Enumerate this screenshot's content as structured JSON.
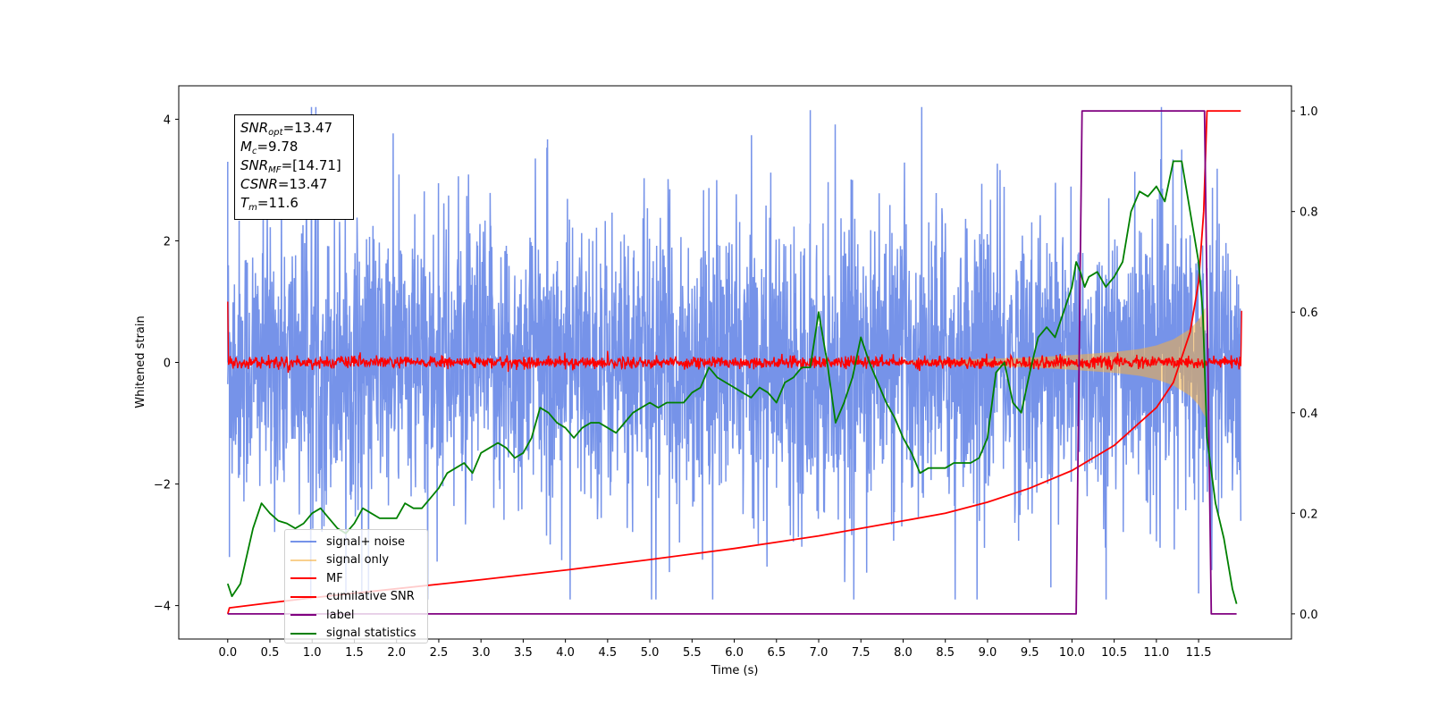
{
  "colors": {
    "signal_noise": "#4169e1",
    "signal_only": "#f5b042",
    "mf": "#ff0000",
    "cum_snr": "#ff0000",
    "label": "#800080",
    "stats": "#008000"
  },
  "info": {
    "snr_opt_sym": "SNR",
    "snr_opt_sub": "opt",
    "snr_opt_val": "=13.47",
    "mc_sym": "M",
    "mc_sub": "c",
    "mc_val": "=9.78",
    "snr_mf_sym": "SNR",
    "snr_mf_sub": "MF",
    "snr_mf_val": "=[14.71]",
    "csnr_sym": "CSNR",
    "csnr_val": "=13.47",
    "tm_sym": "T",
    "tm_sub": "m",
    "tm_val": "=11.6"
  },
  "legend": [
    {
      "label": "signal+ noise",
      "color": "#4169e1"
    },
    {
      "label": "signal only",
      "color": "#f5b042"
    },
    {
      "label": "MF",
      "color": "#ff0000"
    },
    {
      "label": "cumilative SNR",
      "color": "#ff0000"
    },
    {
      "label": "label",
      "color": "#800080"
    },
    {
      "label": "signal statistics",
      "color": "#008000"
    }
  ],
  "chart_data": {
    "type": "line",
    "xlabel": "Time (s)",
    "ylabel": "Whitened strain",
    "xlim": [
      -0.58,
      12.6
    ],
    "ylim_left": [
      -4.55,
      4.55
    ],
    "ylim_right": [
      -0.05,
      1.05
    ],
    "x_ticks": [
      "0.0",
      "0.5",
      "1.0",
      "1.5",
      "2.0",
      "2.5",
      "3.0",
      "3.5",
      "4.0",
      "4.5",
      "5.0",
      "5.5",
      "6.0",
      "6.5",
      "7.0",
      "7.5",
      "8.0",
      "8.5",
      "9.0",
      "9.5",
      "10.0",
      "10.5",
      "11.0",
      "11.5"
    ],
    "y_left_ticks": [
      "4",
      "2",
      "0",
      "−2",
      "−4"
    ],
    "y_left_tick_values": [
      4,
      2,
      0,
      -2,
      -4
    ],
    "y_right_ticks": [
      "1.0",
      "0.8",
      "0.6",
      "0.4",
      "0.2",
      "0.0"
    ],
    "y_right_tick_values": [
      1.0,
      0.8,
      0.6,
      0.4,
      0.2,
      0.0
    ],
    "series": [
      {
        "name": "signal+ noise",
        "axis": "left",
        "note_shape": "dense noise band",
        "x_range": [
          0.0,
          12.0
        ],
        "band_p05": [
          -2.3,
          2.3
        ],
        "band_extremes": [
          -3.9,
          4.2
        ],
        "values_sample": [
          [
            0.0,
            3.3
          ],
          [
            0.02,
            -3.2
          ],
          [
            6.9,
            4.15
          ],
          [
            7.4,
            3.0
          ],
          [
            11.3,
            3.5
          ],
          [
            11.5,
            -3.8
          ],
          [
            9.75,
            -3.7
          ]
        ]
      },
      {
        "name": "signal only",
        "axis": "left",
        "envelope": [
          [
            8.0,
            0.02
          ],
          [
            8.5,
            0.04
          ],
          [
            9.0,
            0.06
          ],
          [
            9.5,
            0.08
          ],
          [
            10.0,
            0.12
          ],
          [
            10.5,
            0.17
          ],
          [
            10.8,
            0.22
          ],
          [
            11.0,
            0.28
          ],
          [
            11.2,
            0.38
          ],
          [
            11.4,
            0.55
          ],
          [
            11.5,
            0.7
          ],
          [
            11.58,
            0.9
          ]
        ]
      },
      {
        "name": "MF",
        "axis": "left",
        "note_shape": "noisy near zero, spike at start",
        "values": [
          [
            0.0,
            1.0
          ],
          [
            0.01,
            0.1
          ],
          [
            12.0,
            -0.05
          ],
          [
            12.01,
            0.85
          ]
        ],
        "noise_amplitude": 0.1
      },
      {
        "name": "cumilative SNR",
        "axis": "right",
        "values": [
          [
            0.0,
            0.0
          ],
          [
            0.02,
            0.012
          ],
          [
            0.5,
            0.022
          ],
          [
            1.0,
            0.032
          ],
          [
            2.0,
            0.05
          ],
          [
            3.0,
            0.068
          ],
          [
            4.0,
            0.087
          ],
          [
            5.0,
            0.108
          ],
          [
            6.0,
            0.13
          ],
          [
            7.0,
            0.155
          ],
          [
            8.0,
            0.185
          ],
          [
            8.5,
            0.2
          ],
          [
            9.0,
            0.222
          ],
          [
            9.5,
            0.25
          ],
          [
            10.0,
            0.285
          ],
          [
            10.5,
            0.335
          ],
          [
            11.0,
            0.41
          ],
          [
            11.2,
            0.46
          ],
          [
            11.4,
            0.56
          ],
          [
            11.5,
            0.66
          ],
          [
            11.56,
            0.8
          ],
          [
            11.6,
            1.0
          ],
          [
            12.0,
            1.0
          ]
        ]
      },
      {
        "name": "label",
        "axis": "right",
        "values": [
          [
            0.0,
            0.0
          ],
          [
            10.05,
            0.0
          ],
          [
            10.12,
            1.0
          ],
          [
            11.57,
            1.0
          ],
          [
            11.65,
            0.0
          ],
          [
            11.95,
            0.0
          ]
        ]
      },
      {
        "name": "signal statistics",
        "axis": "right",
        "values": [
          [
            0.0,
            0.06
          ],
          [
            0.05,
            0.035
          ],
          [
            0.15,
            0.06
          ],
          [
            0.3,
            0.17
          ],
          [
            0.4,
            0.22
          ],
          [
            0.5,
            0.2
          ],
          [
            0.6,
            0.185
          ],
          [
            0.7,
            0.18
          ],
          [
            0.8,
            0.17
          ],
          [
            0.9,
            0.18
          ],
          [
            1.0,
            0.2
          ],
          [
            1.1,
            0.21
          ],
          [
            1.2,
            0.19
          ],
          [
            1.3,
            0.17
          ],
          [
            1.4,
            0.16
          ],
          [
            1.5,
            0.18
          ],
          [
            1.6,
            0.21
          ],
          [
            1.7,
            0.2
          ],
          [
            1.8,
            0.19
          ],
          [
            1.9,
            0.19
          ],
          [
            2.0,
            0.19
          ],
          [
            2.1,
            0.22
          ],
          [
            2.2,
            0.21
          ],
          [
            2.3,
            0.21
          ],
          [
            2.4,
            0.23
          ],
          [
            2.5,
            0.25
          ],
          [
            2.6,
            0.28
          ],
          [
            2.7,
            0.29
          ],
          [
            2.8,
            0.3
          ],
          [
            2.9,
            0.28
          ],
          [
            3.0,
            0.32
          ],
          [
            3.1,
            0.33
          ],
          [
            3.2,
            0.34
          ],
          [
            3.3,
            0.33
          ],
          [
            3.4,
            0.31
          ],
          [
            3.5,
            0.32
          ],
          [
            3.6,
            0.35
          ],
          [
            3.7,
            0.41
          ],
          [
            3.8,
            0.4
          ],
          [
            3.9,
            0.38
          ],
          [
            4.0,
            0.37
          ],
          [
            4.1,
            0.35
          ],
          [
            4.2,
            0.37
          ],
          [
            4.3,
            0.38
          ],
          [
            4.4,
            0.38
          ],
          [
            4.5,
            0.37
          ],
          [
            4.6,
            0.36
          ],
          [
            4.7,
            0.38
          ],
          [
            4.8,
            0.4
          ],
          [
            4.9,
            0.41
          ],
          [
            5.0,
            0.42
          ],
          [
            5.1,
            0.41
          ],
          [
            5.2,
            0.42
          ],
          [
            5.3,
            0.42
          ],
          [
            5.4,
            0.42
          ],
          [
            5.5,
            0.44
          ],
          [
            5.6,
            0.45
          ],
          [
            5.7,
            0.49
          ],
          [
            5.8,
            0.47
          ],
          [
            5.9,
            0.46
          ],
          [
            6.0,
            0.45
          ],
          [
            6.1,
            0.44
          ],
          [
            6.2,
            0.43
          ],
          [
            6.3,
            0.45
          ],
          [
            6.4,
            0.44
          ],
          [
            6.5,
            0.42
          ],
          [
            6.6,
            0.46
          ],
          [
            6.7,
            0.47
          ],
          [
            6.8,
            0.49
          ],
          [
            6.9,
            0.49
          ],
          [
            7.0,
            0.6
          ],
          [
            7.1,
            0.5
          ],
          [
            7.2,
            0.38
          ],
          [
            7.3,
            0.42
          ],
          [
            7.4,
            0.47
          ],
          [
            7.5,
            0.55
          ],
          [
            7.6,
            0.5
          ],
          [
            7.7,
            0.46
          ],
          [
            7.8,
            0.42
          ],
          [
            7.9,
            0.39
          ],
          [
            8.0,
            0.35
          ],
          [
            8.1,
            0.32
          ],
          [
            8.2,
            0.28
          ],
          [
            8.3,
            0.29
          ],
          [
            8.4,
            0.29
          ],
          [
            8.5,
            0.29
          ],
          [
            8.6,
            0.3
          ],
          [
            8.7,
            0.3
          ],
          [
            8.8,
            0.3
          ],
          [
            8.9,
            0.31
          ],
          [
            9.0,
            0.35
          ],
          [
            9.1,
            0.48
          ],
          [
            9.2,
            0.5
          ],
          [
            9.3,
            0.42
          ],
          [
            9.4,
            0.4
          ],
          [
            9.5,
            0.48
          ],
          [
            9.6,
            0.55
          ],
          [
            9.7,
            0.57
          ],
          [
            9.8,
            0.55
          ],
          [
            9.9,
            0.6
          ],
          [
            10.0,
            0.65
          ],
          [
            10.05,
            0.7
          ],
          [
            10.1,
            0.68
          ],
          [
            10.15,
            0.65
          ],
          [
            10.2,
            0.67
          ],
          [
            10.3,
            0.68
          ],
          [
            10.4,
            0.65
          ],
          [
            10.5,
            0.67
          ],
          [
            10.6,
            0.7
          ],
          [
            10.7,
            0.8
          ],
          [
            10.8,
            0.84
          ],
          [
            10.9,
            0.83
          ],
          [
            11.0,
            0.85
          ],
          [
            11.1,
            0.82
          ],
          [
            11.2,
            0.9
          ],
          [
            11.3,
            0.9
          ],
          [
            11.4,
            0.8
          ],
          [
            11.5,
            0.7
          ],
          [
            11.55,
            0.6
          ],
          [
            11.6,
            0.35
          ],
          [
            11.7,
            0.22
          ],
          [
            11.8,
            0.15
          ],
          [
            11.9,
            0.05
          ],
          [
            11.95,
            0.02
          ]
        ]
      }
    ]
  }
}
